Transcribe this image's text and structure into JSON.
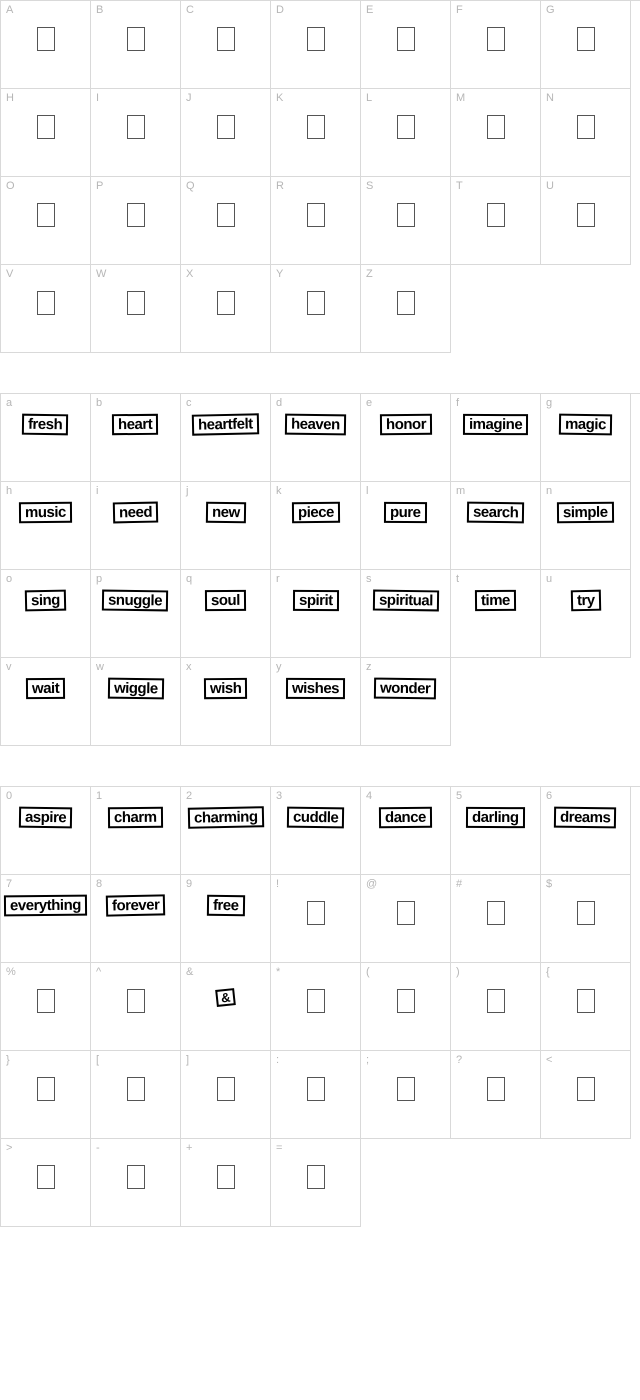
{
  "sections": [
    {
      "id": "uppercase",
      "cells": [
        {
          "label": "A",
          "type": "empty"
        },
        {
          "label": "B",
          "type": "empty"
        },
        {
          "label": "C",
          "type": "empty"
        },
        {
          "label": "D",
          "type": "empty"
        },
        {
          "label": "E",
          "type": "empty"
        },
        {
          "label": "F",
          "type": "empty"
        },
        {
          "label": "G",
          "type": "empty"
        },
        {
          "label": "H",
          "type": "empty"
        },
        {
          "label": "I",
          "type": "empty"
        },
        {
          "label": "J",
          "type": "empty"
        },
        {
          "label": "K",
          "type": "empty"
        },
        {
          "label": "L",
          "type": "empty"
        },
        {
          "label": "M",
          "type": "empty"
        },
        {
          "label": "N",
          "type": "empty"
        },
        {
          "label": "O",
          "type": "empty"
        },
        {
          "label": "P",
          "type": "empty"
        },
        {
          "label": "Q",
          "type": "empty"
        },
        {
          "label": "R",
          "type": "empty"
        },
        {
          "label": "S",
          "type": "empty"
        },
        {
          "label": "T",
          "type": "empty"
        },
        {
          "label": "U",
          "type": "empty"
        },
        {
          "label": "V",
          "type": "empty"
        },
        {
          "label": "W",
          "type": "empty"
        },
        {
          "label": "X",
          "type": "empty"
        },
        {
          "label": "Y",
          "type": "empty"
        },
        {
          "label": "Z",
          "type": "empty"
        }
      ]
    },
    {
      "id": "lowercase",
      "cells": [
        {
          "label": "a",
          "type": "word",
          "word": "fresh",
          "rot": "r1"
        },
        {
          "label": "b",
          "type": "word",
          "word": "heart",
          "rot": ""
        },
        {
          "label": "c",
          "type": "word",
          "word": "heartfelt",
          "rot": "r2"
        },
        {
          "label": "d",
          "type": "word",
          "word": "heaven",
          "rot": "r1"
        },
        {
          "label": "e",
          "type": "word",
          "word": "honor",
          "rot": ""
        },
        {
          "label": "f",
          "type": "word",
          "word": "imagine",
          "rot": "r3"
        },
        {
          "label": "g",
          "type": "word",
          "word": "magic",
          "rot": "r1"
        },
        {
          "label": "h",
          "type": "word",
          "word": "music",
          "rot": ""
        },
        {
          "label": "i",
          "type": "word",
          "word": "need",
          "rot": "r2"
        },
        {
          "label": "j",
          "type": "word",
          "word": "new",
          "rot": "r1"
        },
        {
          "label": "k",
          "type": "word",
          "word": "piece",
          "rot": ""
        },
        {
          "label": "l",
          "type": "word",
          "word": "pure",
          "rot": "r3"
        },
        {
          "label": "m",
          "type": "word",
          "word": "search",
          "rot": "r1"
        },
        {
          "label": "n",
          "type": "word",
          "word": "simple",
          "rot": ""
        },
        {
          "label": "o",
          "type": "word",
          "word": "sing",
          "rot": "r2"
        },
        {
          "label": "p",
          "type": "word",
          "word": "snuggle",
          "rot": "r1"
        },
        {
          "label": "q",
          "type": "word",
          "word": "soul",
          "rot": ""
        },
        {
          "label": "r",
          "type": "word",
          "word": "spirit",
          "rot": "r3"
        },
        {
          "label": "s",
          "type": "word",
          "word": "spiritual",
          "rot": "r1"
        },
        {
          "label": "t",
          "type": "word",
          "word": "time",
          "rot": ""
        },
        {
          "label": "u",
          "type": "word",
          "word": "try",
          "rot": "r2"
        },
        {
          "label": "v",
          "type": "word",
          "word": "wait",
          "rot": ""
        },
        {
          "label": "w",
          "type": "word",
          "word": "wiggle",
          "rot": "r1"
        },
        {
          "label": "x",
          "type": "word",
          "word": "wish",
          "rot": ""
        },
        {
          "label": "y",
          "type": "word",
          "word": "wishes",
          "rot": "r3"
        },
        {
          "label": "z",
          "type": "word",
          "word": "wonder",
          "rot": "r1"
        }
      ]
    },
    {
      "id": "numbers-symbols",
      "cells": [
        {
          "label": "0",
          "type": "word",
          "word": "aspire",
          "rot": "r1"
        },
        {
          "label": "1",
          "type": "word",
          "word": "charm",
          "rot": ""
        },
        {
          "label": "2",
          "type": "word",
          "word": "charming",
          "rot": "r2"
        },
        {
          "label": "3",
          "type": "word",
          "word": "cuddle",
          "rot": "r1"
        },
        {
          "label": "4",
          "type": "word",
          "word": "dance",
          "rot": ""
        },
        {
          "label": "5",
          "type": "word",
          "word": "darling",
          "rot": "r3"
        },
        {
          "label": "6",
          "type": "word",
          "word": "dreams",
          "rot": "r1"
        },
        {
          "label": "7",
          "type": "word",
          "word": "everything",
          "rot": ""
        },
        {
          "label": "8",
          "type": "word",
          "word": "forever",
          "rot": "r2"
        },
        {
          "label": "9",
          "type": "word",
          "word": "free",
          "rot": "r1"
        },
        {
          "label": "!",
          "type": "empty"
        },
        {
          "label": "@",
          "type": "empty"
        },
        {
          "label": "#",
          "type": "empty"
        },
        {
          "label": "$",
          "type": "empty"
        },
        {
          "label": "%",
          "type": "empty"
        },
        {
          "label": "^",
          "type": "empty"
        },
        {
          "label": "&",
          "type": "amp"
        },
        {
          "label": "*",
          "type": "empty"
        },
        {
          "label": "(",
          "type": "empty"
        },
        {
          "label": ")",
          "type": "empty"
        },
        {
          "label": "{",
          "type": "empty"
        },
        {
          "label": "}",
          "type": "empty"
        },
        {
          "label": "[",
          "type": "empty"
        },
        {
          "label": "]",
          "type": "empty"
        },
        {
          "label": ":",
          "type": "empty"
        },
        {
          "label": ";",
          "type": "empty"
        },
        {
          "label": "?",
          "type": "empty"
        },
        {
          "label": "<",
          "type": "empty"
        },
        {
          "label": ">",
          "type": "empty"
        },
        {
          "label": "-",
          "type": "empty"
        },
        {
          "label": "+",
          "type": "empty"
        },
        {
          "label": "=",
          "type": "empty"
        }
      ]
    }
  ],
  "amp_glyph": "&",
  "colors": {
    "cell_border": "#d9d9d9",
    "label_text": "#b6b6b6",
    "glyph_border": "#555555",
    "word_border": "#000000",
    "background": "#ffffff"
  },
  "cell_size": {
    "w": 90,
    "h": 88
  },
  "columns": 7
}
